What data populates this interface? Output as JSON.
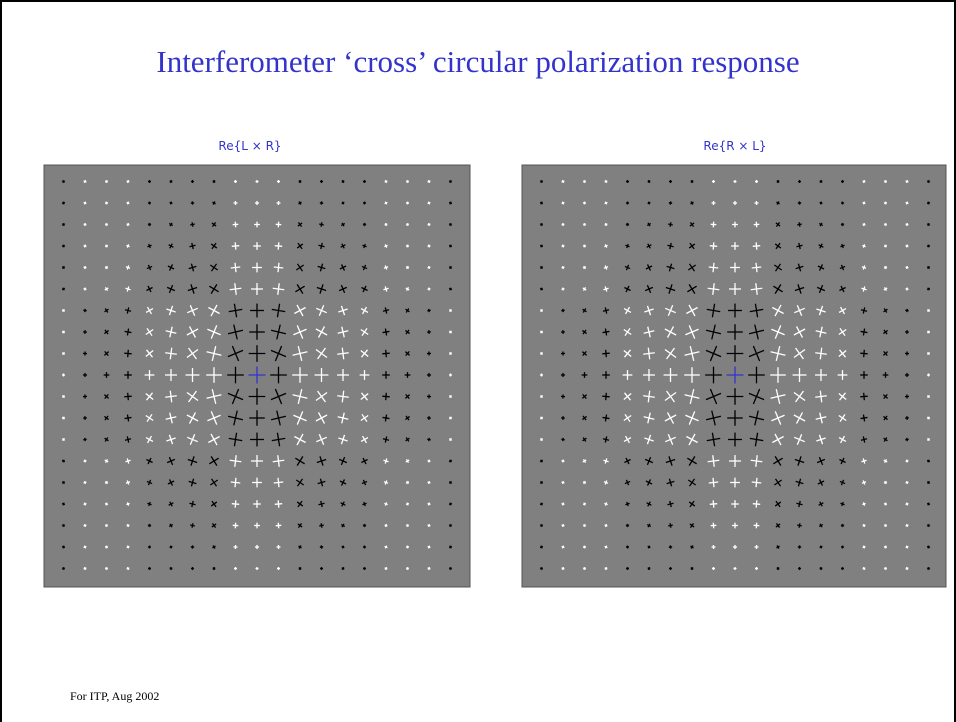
{
  "title": "Interferometer ‘cross’ circular polarization response",
  "panels": [
    {
      "title": "Re{L × R}"
    },
    {
      "title": "Re{R × L}"
    }
  ],
  "footer": "For ITP, Aug 2002"
}
